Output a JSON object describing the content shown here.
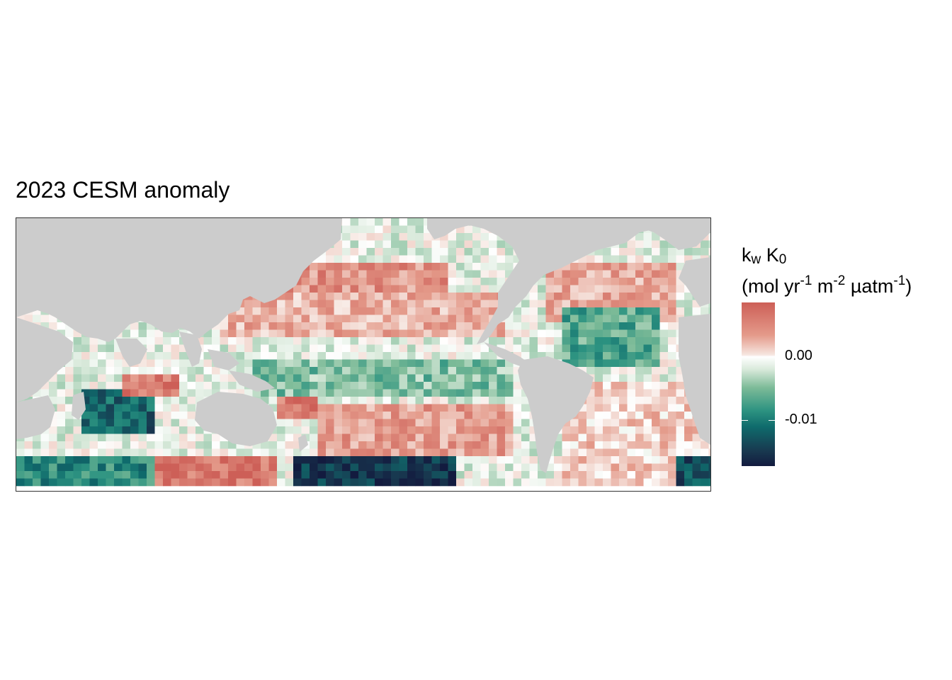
{
  "title": "2023 CESM anomaly",
  "legend": {
    "title_line1_k": "k",
    "title_line1_w": "w",
    "title_line1_K": " K",
    "title_line1_0": "0",
    "title_line2_a": "(mol yr",
    "title_line2_exp1": "-1",
    "title_line2_b": " m",
    "title_line2_exp2": "-2",
    "title_line2_c": " µatm",
    "title_line2_exp3": "-1",
    "title_line2_d": ")",
    "ticks": [
      "0.00",
      "-0.01"
    ],
    "colors": [
      "#cd5f57",
      "#ffffff",
      "#2d9381",
      "#131b3f"
    ]
  },
  "map": {
    "land_color": "#cccccc",
    "ocean_color": "#ffffff",
    "projection": "Pacific-centered equirectangular",
    "fill_variable": "k_w K_0 anomaly",
    "value_range": [
      -0.018,
      0.008
    ]
  }
}
